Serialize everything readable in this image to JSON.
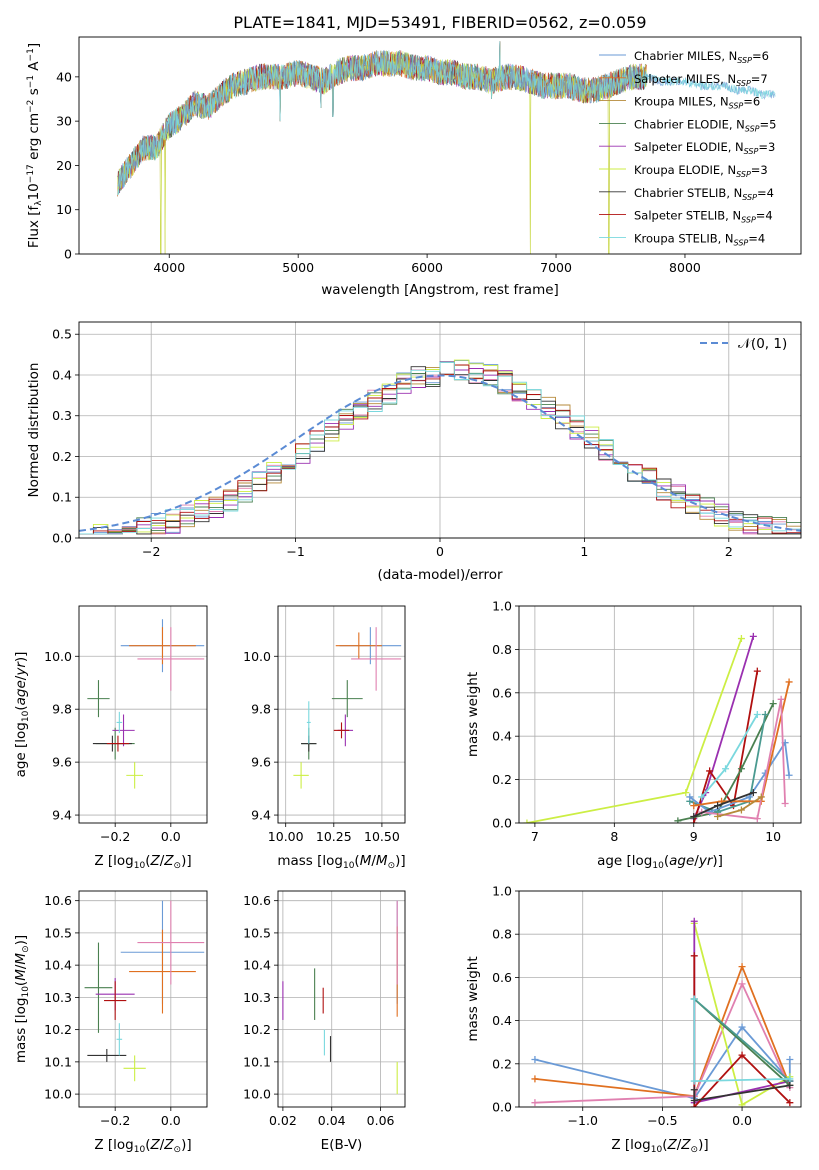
{
  "title": "PLATE=1841, MJD=53491, FIBERID=0562, z=0.059",
  "colors": {
    "series": [
      "#6a9ad6",
      "#e07020",
      "#b58a3a",
      "#4a8050",
      "#9a30b0",
      "#ccee44",
      "#333333",
      "#b01010",
      "#7ad8de"
    ],
    "extra": [
      "#e080b0",
      "#4a9a90",
      "#c0a0d0"
    ],
    "gauss": "#5b8bd4",
    "grid": "#b0b0b0"
  },
  "chart_data": [
    {
      "id": "spectrum",
      "type": "line",
      "title": "PLATE=1841, MJD=53491, FIBERID=0562, z=0.059",
      "xlabel": "wavelength [Angstrom, rest frame]",
      "ylabel": "Flux [fλ10⁻¹⁷ erg cm⁻² s⁻¹ A⁻¹]",
      "xlim": [
        3300,
        8900
      ],
      "ylim": [
        0,
        49
      ],
      "xticks": [
        "4000",
        "5000",
        "6000",
        "7000",
        "8000"
      ],
      "yticks": [
        "0",
        "10",
        "20",
        "30",
        "40"
      ],
      "grid": false,
      "legend_position": "upper-right",
      "legend": [
        "Chabrier MILES, N_SSP=6",
        "Salpeter MILES, N_SSP=7",
        "Kroupa MILES, N_SSP=6",
        "Chabrier ELODIE, N_SSP=5",
        "Salpeter ELODIE, N_SSP=3",
        "Kroupa ELODIE, N_SSP=3",
        "Chabrier STELIB, N_SSP=4",
        "Salpeter STELIB, N_SSP=4",
        "Kroupa STELIB, N_SSP=4"
      ],
      "continuum": [
        [
          3600,
          16
        ],
        [
          3700,
          20
        ],
        [
          3800,
          24
        ],
        [
          3900,
          24
        ],
        [
          4000,
          29
        ],
        [
          4100,
          31
        ],
        [
          4200,
          34
        ],
        [
          4300,
          33
        ],
        [
          4400,
          36
        ],
        [
          4500,
          38
        ],
        [
          4600,
          39
        ],
        [
          4700,
          40
        ],
        [
          4800,
          40
        ],
        [
          4900,
          40
        ],
        [
          5000,
          41
        ],
        [
          5100,
          40
        ],
        [
          5200,
          39
        ],
        [
          5300,
          41
        ],
        [
          5400,
          42
        ],
        [
          5500,
          42
        ],
        [
          5600,
          43
        ],
        [
          5700,
          43
        ],
        [
          5800,
          43
        ],
        [
          5900,
          42
        ],
        [
          6000,
          42
        ],
        [
          6100,
          41
        ],
        [
          6200,
          41
        ],
        [
          6300,
          40
        ],
        [
          6400,
          40
        ],
        [
          6500,
          39
        ],
        [
          6600,
          40
        ],
        [
          6700,
          40
        ],
        [
          6800,
          39
        ],
        [
          6900,
          38
        ],
        [
          7000,
          38
        ],
        [
          7100,
          38
        ],
        [
          7200,
          37
        ],
        [
          7300,
          37
        ],
        [
          7400,
          38
        ],
        [
          7500,
          39
        ],
        [
          7600,
          40
        ],
        [
          7700,
          40
        ],
        [
          7800,
          39
        ],
        [
          7900,
          39
        ],
        [
          8000,
          39
        ],
        [
          8100,
          38
        ],
        [
          8200,
          38
        ],
        [
          8300,
          38
        ],
        [
          8400,
          37
        ],
        [
          8500,
          37
        ],
        [
          8600,
          36
        ],
        [
          8700,
          36
        ],
        [
          8800,
          35
        ],
        [
          8900,
          35
        ]
      ],
      "dips": [
        [
          3934,
          0
        ],
        [
          3968,
          0
        ],
        [
          4861,
          30
        ],
        [
          5175,
          33
        ],
        [
          5270,
          31
        ],
        [
          6500,
          35
        ],
        [
          6563,
          48
        ],
        [
          6800,
          0
        ],
        [
          7410,
          0
        ]
      ]
    },
    {
      "id": "residuals",
      "type": "line",
      "xlabel": "(data-model)/error",
      "ylabel": "Normed distribution",
      "xlim": [
        -2.5,
        2.5
      ],
      "ylim": [
        0,
        0.53
      ],
      "xticks": [
        "−2",
        "−1",
        "0",
        "1",
        "2"
      ],
      "yticks": [
        "0.0",
        "0.1",
        "0.2",
        "0.3",
        "0.4",
        "0.5"
      ],
      "grid": true,
      "legend_position": "upper-right",
      "legend": [
        "𝒩(0, 1)"
      ],
      "bin_width": 0.1,
      "gaussian": {
        "mu": 0,
        "sigma": 1
      }
    },
    {
      "id": "age-vs-z",
      "type": "scatter",
      "xlabel": "Z [log₁₀(Z/Z⊙)]",
      "ylabel": "age  [log₁₀(age/yr)]",
      "xlim": [
        -0.33,
        0.13
      ],
      "ylim": [
        9.37,
        10.19
      ],
      "xticks": [
        "−0.2",
        "0.0"
      ],
      "yticks": [
        "9.4",
        "9.6",
        "9.8",
        "10.0"
      ],
      "grid": true,
      "points": [
        {
          "x": -0.03,
          "y": 10.04,
          "xerr": 0.15,
          "yerr": 0.1,
          "color": 0
        },
        {
          "x": -0.03,
          "y": 10.04,
          "xerr": 0.12,
          "yerr": 0.07,
          "color": 1
        },
        {
          "x": 0.0,
          "y": 9.99,
          "xerr": 0.12,
          "yerr": 0.12,
          "color": 9
        },
        {
          "x": -0.26,
          "y": 9.84,
          "xerr": 0.04,
          "yerr": 0.07,
          "color": 3
        },
        {
          "x": -0.2,
          "y": 9.67,
          "xerr": 0.07,
          "yerr": 0.06,
          "color": 3
        },
        {
          "x": -0.17,
          "y": 9.72,
          "xerr": 0.04,
          "yerr": 0.06,
          "color": 4
        },
        {
          "x": -0.13,
          "y": 9.55,
          "xerr": 0.03,
          "yerr": 0.05,
          "color": 5
        },
        {
          "x": -0.21,
          "y": 9.67,
          "xerr": 0.07,
          "yerr": 0.03,
          "color": 6
        },
        {
          "x": -0.19,
          "y": 9.67,
          "xerr": 0.04,
          "yerr": 0.03,
          "color": 7
        },
        {
          "x": -0.185,
          "y": 9.75,
          "xerr": 0.01,
          "yerr": 0.04,
          "color": 8
        }
      ]
    },
    {
      "id": "age-vs-mass",
      "type": "scatter",
      "xlabel": "mass [log₁₀(M/M⊙)]",
      "ylabel": "",
      "xlim": [
        9.96,
        10.62
      ],
      "ylim": [
        9.37,
        10.19
      ],
      "xticks": [
        "10.00",
        "10.25",
        "10.50"
      ],
      "yticks": [
        "9.4",
        "9.6",
        "9.8",
        "10.0"
      ],
      "grid": true,
      "points": [
        {
          "x": 10.44,
          "y": 10.04,
          "xerr": 0.16,
          "yerr": 0.07,
          "color": 0
        },
        {
          "x": 10.38,
          "y": 10.04,
          "xerr": 0.12,
          "yerr": 0.05,
          "color": 1
        },
        {
          "x": 10.47,
          "y": 9.99,
          "xerr": 0.13,
          "yerr": 0.12,
          "color": 9
        },
        {
          "x": 10.32,
          "y": 9.84,
          "xerr": 0.08,
          "yerr": 0.07,
          "color": 3
        },
        {
          "x": 10.12,
          "y": 9.67,
          "xerr": 0.04,
          "yerr": 0.06,
          "color": 3
        },
        {
          "x": 10.31,
          "y": 9.72,
          "xerr": 0.04,
          "yerr": 0.06,
          "color": 4
        },
        {
          "x": 10.08,
          "y": 9.55,
          "xerr": 0.04,
          "yerr": 0.05,
          "color": 5
        },
        {
          "x": 10.12,
          "y": 9.67,
          "xerr": 0.04,
          "yerr": 0.03,
          "color": 6
        },
        {
          "x": 10.29,
          "y": 9.72,
          "xerr": 0.04,
          "yerr": 0.03,
          "color": 7
        },
        {
          "x": 10.12,
          "y": 9.75,
          "xerr": 0.01,
          "yerr": 0.08,
          "color": 8
        }
      ]
    },
    {
      "id": "weight-vs-age",
      "type": "line",
      "xlabel": "age  [log₁₀(age/yr)]",
      "ylabel": "mass weight",
      "xlim": [
        6.8,
        10.35
      ],
      "ylim": [
        0,
        1.0
      ],
      "xticks": [
        "7",
        "8",
        "9",
        "10"
      ],
      "yticks": [
        "0.0",
        "0.2",
        "0.4",
        "0.6",
        "0.8",
        "1.0"
      ],
      "grid": true,
      "series": [
        {
          "color": 5,
          "x": [
            6.9,
            8.9,
            9.6
          ],
          "y": [
            0.0,
            0.14,
            0.85
          ]
        },
        {
          "color": 4,
          "x": [
            9.0,
            9.15,
            9.75
          ],
          "y": [
            0.02,
            0.14,
            0.86
          ]
        },
        {
          "color": 7,
          "x": [
            9.0,
            9.2,
            9.5,
            9.8
          ],
          "y": [
            0.0,
            0.24,
            0.08,
            0.7
          ]
        },
        {
          "color": 3,
          "x": [
            8.8,
            9.3,
            9.6,
            10.0
          ],
          "y": [
            0.01,
            0.05,
            0.25,
            0.55
          ]
        },
        {
          "color": 10,
          "x": [
            8.95,
            9.3,
            9.7,
            9.9
          ],
          "y": [
            0.1,
            0.05,
            0.1,
            0.5
          ]
        },
        {
          "color": 0,
          "x": [
            8.95,
            9.2,
            9.7,
            9.9,
            10.15,
            10.2
          ],
          "y": [
            0.12,
            0.05,
            0.12,
            0.23,
            0.37,
            0.22
          ]
        },
        {
          "color": 1,
          "x": [
            9.0,
            9.35,
            9.85,
            10.2
          ],
          "y": [
            0.08,
            0.1,
            0.1,
            0.65
          ]
        },
        {
          "color": 9,
          "x": [
            9.1,
            9.8,
            10.1,
            10.15
          ],
          "y": [
            0.05,
            0.02,
            0.57,
            0.09
          ]
        },
        {
          "color": 6,
          "x": [
            9.0,
            9.3,
            9.75
          ],
          "y": [
            0.03,
            0.08,
            0.14
          ]
        },
        {
          "color": 2,
          "x": [
            9.3,
            9.6,
            9.85
          ],
          "y": [
            0.03,
            0.06,
            0.12
          ]
        },
        {
          "color": 8,
          "x": [
            9.1,
            9.4,
            9.8
          ],
          "y": [
            0.12,
            0.25,
            0.5
          ]
        }
      ]
    },
    {
      "id": "mass-vs-z",
      "type": "scatter",
      "xlabel": "Z [log₁₀(Z/Z⊙)]",
      "ylabel": "mass [log₁₀(M/M⊙)]",
      "xlim": [
        -0.33,
        0.13
      ],
      "ylim": [
        9.96,
        10.63
      ],
      "xticks": [
        "−0.2",
        "0.0"
      ],
      "yticks": [
        "10.0",
        "10.1",
        "10.2",
        "10.3",
        "10.4",
        "10.5",
        "10.6"
      ],
      "grid": true,
      "points": [
        {
          "x": -0.03,
          "y": 10.44,
          "xerr": 0.15,
          "yerr": 0.16,
          "color": 0
        },
        {
          "x": -0.03,
          "y": 10.38,
          "xerr": 0.12,
          "yerr": 0.13,
          "color": 1
        },
        {
          "x": 0.0,
          "y": 10.47,
          "xerr": 0.12,
          "yerr": 0.13,
          "color": 9
        },
        {
          "x": -0.26,
          "y": 10.33,
          "xerr": 0.05,
          "yerr": 0.14,
          "color": 3
        },
        {
          "x": -0.23,
          "y": 10.12,
          "xerr": 0.07,
          "yerr": 0.02,
          "color": 6
        },
        {
          "x": -0.2,
          "y": 10.31,
          "xerr": 0.07,
          "yerr": 0.05,
          "color": 4
        },
        {
          "x": -0.13,
          "y": 10.08,
          "xerr": 0.04,
          "yerr": 0.04,
          "color": 5
        },
        {
          "x": -0.2,
          "y": 10.29,
          "xerr": 0.04,
          "yerr": 0.06,
          "color": 7
        },
        {
          "x": -0.185,
          "y": 10.17,
          "xerr": 0.01,
          "yerr": 0.05,
          "color": 8
        }
      ]
    },
    {
      "id": "mass-vs-ebv",
      "type": "scatter",
      "xlabel": "E(B-V)",
      "ylabel": "",
      "xlim": [
        0.018,
        0.07
      ],
      "ylim": [
        9.96,
        10.63
      ],
      "xticks": [
        "0.02",
        "0.04",
        "0.06"
      ],
      "yticks": [
        "10.0",
        "10.1",
        "10.2",
        "10.3",
        "10.4",
        "10.5",
        "10.6"
      ],
      "grid": true,
      "points": [
        {
          "x": 0.0668,
          "y": 10.44,
          "xerr": 0,
          "yerr": 0.16,
          "color": 0
        },
        {
          "x": 0.0668,
          "y": 10.38,
          "xerr": 0,
          "yerr": 0.14,
          "color": 1
        },
        {
          "x": 0.0668,
          "y": 10.47,
          "xerr": 0,
          "yerr": 0.13,
          "color": 9
        },
        {
          "x": 0.02,
          "y": 10.29,
          "xerr": 0,
          "yerr": 0.06,
          "color": 4
        },
        {
          "x": 0.033,
          "y": 10.31,
          "xerr": 0,
          "yerr": 0.08,
          "color": 3
        },
        {
          "x": 0.0365,
          "y": 10.29,
          "xerr": 0,
          "yerr": 0.04,
          "color": 7
        },
        {
          "x": 0.037,
          "y": 10.16,
          "xerr": 0,
          "yerr": 0.04,
          "color": 8
        },
        {
          "x": 0.0395,
          "y": 10.14,
          "xerr": 0,
          "yerr": 0.04,
          "color": 6
        },
        {
          "x": 0.0668,
          "y": 10.05,
          "xerr": 0,
          "yerr": 0.05,
          "color": 5
        }
      ]
    },
    {
      "id": "weight-vs-z",
      "type": "line",
      "xlabel": "Z [log₁₀(Z/Z⊙)]",
      "ylabel": "mass weight",
      "xlim": [
        -1.4,
        0.37
      ],
      "ylim": [
        0,
        1.0
      ],
      "xticks": [
        "−1.0",
        "−0.5",
        "0.0"
      ],
      "yticks": [
        "0.0",
        "0.2",
        "0.4",
        "0.6",
        "0.8",
        "1.0"
      ],
      "grid": true,
      "series": [
        {
          "color": 0,
          "x": [
            -1.3,
            -0.3,
            0.0,
            0.3,
            0.3
          ],
          "y": [
            0.22,
            0.04,
            0.37,
            0.12,
            0.22
          ]
        },
        {
          "color": 1,
          "x": [
            -1.3,
            -0.3,
            0.0,
            0.3
          ],
          "y": [
            0.13,
            0.05,
            0.65,
            0.1
          ]
        },
        {
          "color": 9,
          "x": [
            -1.3,
            -0.3,
            0.0,
            0.3
          ],
          "y": [
            0.02,
            0.05,
            0.57,
            0.09
          ]
        },
        {
          "color": 5,
          "x": [
            -0.3,
            0.0,
            0.3
          ],
          "y": [
            0.85,
            0.01,
            0.14
          ]
        },
        {
          "color": 4,
          "x": [
            -0.3,
            -0.3,
            0.3
          ],
          "y": [
            0.86,
            0.02,
            0.12
          ]
        },
        {
          "color": 7,
          "x": [
            -0.3,
            -0.3,
            0.0,
            0.3
          ],
          "y": [
            0.7,
            0.0,
            0.24,
            0.02
          ]
        },
        {
          "color": 3,
          "x": [
            -0.3,
            0.3
          ],
          "y": [
            0.5,
            0.1
          ]
        },
        {
          "color": 10,
          "x": [
            -0.3,
            0.3
          ],
          "y": [
            0.5,
            0.12
          ]
        },
        {
          "color": 8,
          "x": [
            -0.3,
            -0.3,
            0.3
          ],
          "y": [
            0.5,
            0.12,
            0.13
          ]
        },
        {
          "color": 6,
          "x": [
            -0.3,
            -0.3,
            0.3
          ],
          "y": [
            0.08,
            0.03,
            0.1
          ]
        }
      ]
    }
  ]
}
